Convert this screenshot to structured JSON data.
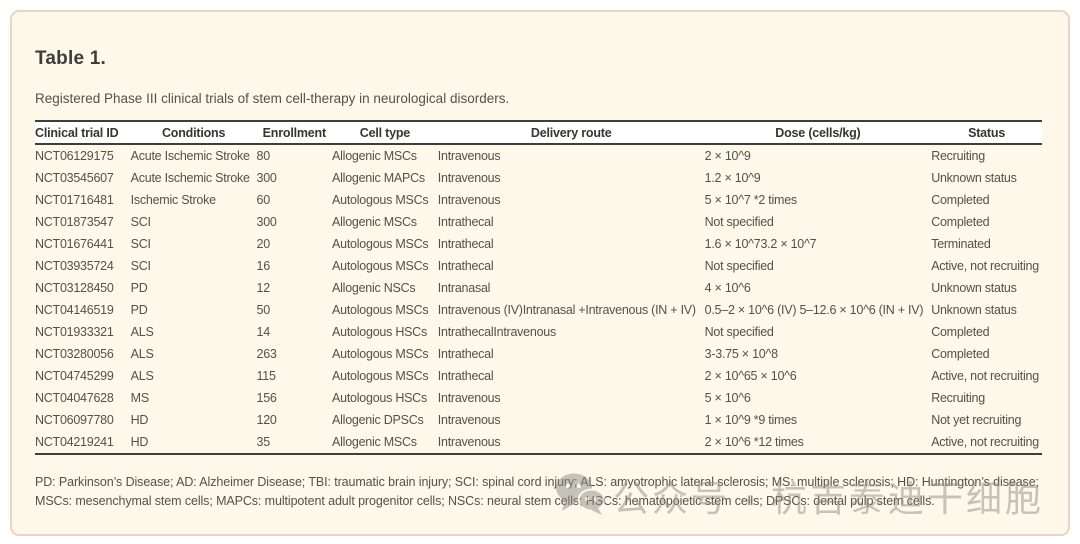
{
  "card": {
    "title": "Table 1.",
    "subtitle": "Registered Phase III clinical trials of stem cell-therapy in neurological disorders."
  },
  "table": {
    "columns": [
      "Clinical trial ID",
      "Conditions",
      "Enrollment",
      "Cell type",
      "Delivery route",
      "Dose (cells/kg)",
      "Status"
    ],
    "column_keys": [
      "trial-id",
      "conditions",
      "enrollment",
      "cell-type",
      "delivery-route",
      "dose",
      "status"
    ],
    "rows": [
      [
        "NCT06129175",
        "Acute Ischemic Stroke",
        "80",
        "Allogenic MSCs",
        "Intravenous",
        "2 × 10^9",
        "Recruiting"
      ],
      [
        "NCT03545607",
        "Acute Ischemic Stroke",
        "300",
        "Allogenic MAPCs",
        "Intravenous",
        "1.2 × 10^9",
        "Unknown status"
      ],
      [
        "NCT01716481",
        "Ischemic Stroke",
        "60",
        "Autologous MSCs",
        "Intravenous",
        "5 × 10^7 *2 times",
        "Completed"
      ],
      [
        "NCT01873547",
        "SCI",
        "300",
        "Allogenic MSCs",
        "Intrathecal",
        "Not specified",
        "Completed"
      ],
      [
        "NCT01676441",
        "SCI",
        "20",
        "Autologous MSCs",
        "Intrathecal",
        "1.6 × 10^73.2 × 10^7",
        "Terminated"
      ],
      [
        "NCT03935724",
        "SCI",
        "16",
        "Autologous MSCs",
        "Intrathecal",
        "Not specified",
        "Active, not recruiting"
      ],
      [
        "NCT03128450",
        "PD",
        "12",
        "Allogenic NSCs",
        "Intranasal",
        "4 × 10^6",
        "Unknown status"
      ],
      [
        "NCT04146519",
        "PD",
        "50",
        "Autologous MSCs",
        "Intravenous (IV)Intranasal +Intravenous (IN + IV)",
        "0.5–2 × 10^6 (IV) 5–12.6 × 10^6 (IN + IV)",
        "Unknown status"
      ],
      [
        "NCT01933321",
        "ALS",
        "14",
        "Autologous HSCs",
        "IntrathecalIntravenous",
        "Not specified",
        "Completed"
      ],
      [
        "NCT03280056",
        "ALS",
        "263",
        "Autologous MSCs",
        "Intrathecal",
        "3-3.75 × 10^8",
        "Completed"
      ],
      [
        "NCT04745299",
        "ALS",
        "115",
        "Autologous MSCs",
        "Intrathecal",
        "2 × 10^65 × 10^6",
        "Active, not recruiting"
      ],
      [
        "NCT04047628",
        "MS",
        "156",
        "Autologous HSCs",
        "Intravenous",
        "5 × 10^6",
        "Recruiting"
      ],
      [
        "NCT06097780",
        "HD",
        "120",
        "Allogenic DPSCs",
        "Intravenous",
        "1 × 10^9 *9 times",
        "Not yet recruiting"
      ],
      [
        "NCT04219241",
        "HD",
        "35",
        "Allogenic MSCs",
        "Intravenous",
        "2 × 10^6 *12 times",
        "Active, not recruiting"
      ]
    ]
  },
  "footnote": "PD: Parkinson’s Disease; AD: Alzheimer Disease; TBI: traumatic brain injury; SCI: spinal cord injury; ALS: amyotrophic lateral sclerosis; MS: multiple sclerosis; HD: Huntington’s disease; MSCs: mesenchymal stem cells; MAPCs: multipotent adult progenitor cells; NSCs: neural stem cells; HSCs: hematopoietic stem cells; DPSCs: dental pulp stem cells.",
  "watermark": {
    "icon": "wechat-icon",
    "text": "公众号 · 杭吉泰迪干细胞"
  },
  "colors": {
    "card_background": "#fdf8e9",
    "card_border": "#f0d2c0",
    "header_row_background": "#ffffff",
    "table_rule": "#403e38",
    "body_text": "#53514b",
    "watermark_gray": "#8e8d87"
  }
}
